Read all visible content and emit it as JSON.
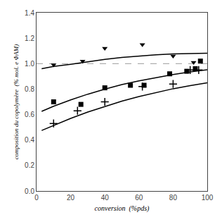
{
  "chart_data": {
    "type": "scatter",
    "xlabel": "conversion  (%pds)",
    "ylabel": "composition du copolymère  (% mol. e ΦAM)",
    "xlim": [
      0,
      100
    ],
    "ylim": [
      0.0,
      1.4
    ],
    "xticks": [
      0,
      20,
      40,
      60,
      80,
      100
    ],
    "yticks": [
      {
        "value": 0.0,
        "label": "0.0"
      },
      0.2,
      0.4,
      0.6,
      0.8,
      {
        "value": 1.0,
        "label": "1.0"
      },
      1.2,
      1.4
    ],
    "grid": false,
    "reference_line": {
      "y": 1.0,
      "color": "#999999",
      "line_style": "dashed"
    },
    "series": [
      {
        "type": "line",
        "color": "#000000",
        "line_style": "solid",
        "x": [
          3,
          10,
          20,
          30,
          40,
          50,
          60,
          70,
          80,
          90,
          100
        ],
        "values": [
          0.96,
          0.978,
          0.995,
          1.015,
          1.033,
          1.048,
          1.06,
          1.07,
          1.076,
          1.08,
          1.082
        ]
      },
      {
        "type": "line",
        "color": "#000000",
        "line_style": "solid",
        "x": [
          3,
          10,
          20,
          30,
          40,
          50,
          60,
          70,
          80,
          90,
          100
        ],
        "values": [
          0.625,
          0.665,
          0.715,
          0.76,
          0.8,
          0.835,
          0.865,
          0.892,
          0.915,
          0.935,
          0.952
        ]
      },
      {
        "type": "line",
        "color": "#000000",
        "line_style": "solid",
        "x": [
          3,
          10,
          20,
          30,
          40,
          50,
          60,
          70,
          80,
          90,
          100
        ],
        "values": [
          0.475,
          0.515,
          0.57,
          0.62,
          0.665,
          0.706,
          0.742,
          0.774,
          0.803,
          0.827,
          0.85
        ]
      },
      {
        "type": "scatter",
        "color": "#000000",
        "marker": "triangle-down",
        "x": [
          10,
          27,
          40,
          62,
          80,
          92
        ],
        "values": [
          0.99,
          1.02,
          1.12,
          1.15,
          1.06,
          1.01
        ]
      },
      {
        "type": "scatter",
        "color": "#000000",
        "marker": "square",
        "x": [
          10,
          26,
          40,
          55,
          63,
          78,
          88,
          93,
          96
        ],
        "values": [
          0.7,
          0.68,
          0.81,
          0.83,
          0.83,
          0.92,
          0.94,
          0.96,
          1.02
        ]
      },
      {
        "type": "scatter",
        "color": "#000000",
        "marker": "plus",
        "x": [
          10,
          24,
          40,
          62,
          80,
          90,
          95
        ],
        "values": [
          0.53,
          0.63,
          0.7,
          0.82,
          0.84,
          0.95,
          0.95
        ]
      }
    ]
  }
}
